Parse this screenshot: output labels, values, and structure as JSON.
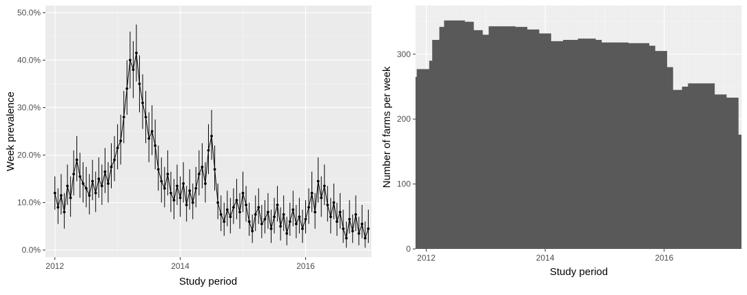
{
  "chart_data": [
    {
      "type": "scatter",
      "panel": "left",
      "title": "",
      "xlabel": "Study period",
      "ylabel": "Week prevalence",
      "x_ticks": [
        "2012",
        "2014",
        "2016"
      ],
      "y_ticks": [
        "0.0%",
        "10.0%",
        "20.0%",
        "30.0%",
        "40.0%",
        "50.0%"
      ],
      "xlim": [
        2011.85,
        2017.05
      ],
      "ylim": [
        -1.5,
        51.5
      ],
      "error_bars": true,
      "grid": true,
      "series": [
        {
          "points": [
            [
              2012.0,
              12.0,
              8.5,
              15.5
            ],
            [
              2012.05,
              9.0,
              5.5,
              13.0
            ],
            [
              2012.1,
              11.5,
              7.5,
              16.0
            ],
            [
              2012.15,
              8.0,
              4.5,
              12.0
            ],
            [
              2012.2,
              13.5,
              9.5,
              18.0
            ],
            [
              2012.25,
              11.0,
              7.0,
              15.5
            ],
            [
              2012.3,
              16.0,
              11.5,
              21.0
            ],
            [
              2012.35,
              19.0,
              14.5,
              24.0
            ],
            [
              2012.4,
              15.5,
              11.0,
              20.5
            ],
            [
              2012.45,
              14.0,
              10.0,
              18.5
            ],
            [
              2012.5,
              13.0,
              9.0,
              17.5
            ],
            [
              2012.55,
              11.5,
              7.5,
              16.0
            ],
            [
              2012.6,
              14.5,
              10.5,
              19.0
            ],
            [
              2012.65,
              12.0,
              8.0,
              16.5
            ],
            [
              2012.7,
              15.0,
              11.0,
              19.5
            ],
            [
              2012.75,
              13.5,
              9.5,
              18.0
            ],
            [
              2012.8,
              16.5,
              12.0,
              21.5
            ],
            [
              2012.85,
              14.0,
              10.0,
              18.5
            ],
            [
              2012.9,
              17.5,
              13.0,
              22.5
            ],
            [
              2012.95,
              19.0,
              14.5,
              24.0
            ],
            [
              2013.0,
              21.5,
              17.0,
              26.5
            ],
            [
              2013.05,
              23.0,
              18.0,
              28.5
            ],
            [
              2013.1,
              28.0,
              22.5,
              33.5
            ],
            [
              2013.15,
              34.0,
              28.5,
              40.0
            ],
            [
              2013.2,
              40.0,
              34.0,
              46.0
            ],
            [
              2013.25,
              38.0,
              32.0,
              44.0
            ],
            [
              2013.3,
              41.5,
              35.5,
              47.5
            ],
            [
              2013.35,
              35.0,
              29.0,
              41.0
            ],
            [
              2013.4,
              31.0,
              25.5,
              37.0
            ],
            [
              2013.45,
              28.0,
              22.5,
              33.5
            ],
            [
              2013.5,
              23.5,
              18.5,
              29.0
            ],
            [
              2013.55,
              25.0,
              20.0,
              30.5
            ],
            [
              2013.6,
              22.0,
              17.0,
              27.5
            ],
            [
              2013.65,
              17.0,
              12.5,
              22.0
            ],
            [
              2013.7,
              14.5,
              10.0,
              19.5
            ],
            [
              2013.75,
              13.0,
              9.0,
              17.5
            ],
            [
              2013.8,
              16.0,
              11.5,
              21.0
            ],
            [
              2013.85,
              12.0,
              8.0,
              16.5
            ],
            [
              2013.9,
              10.5,
              6.5,
              15.0
            ],
            [
              2013.95,
              13.5,
              9.5,
              18.0
            ],
            [
              2014.0,
              11.0,
              7.0,
              15.5
            ],
            [
              2014.05,
              14.0,
              10.0,
              18.5
            ],
            [
              2014.1,
              9.5,
              6.0,
              13.5
            ],
            [
              2014.15,
              12.5,
              8.5,
              17.0
            ],
            [
              2014.2,
              10.0,
              6.5,
              14.0
            ],
            [
              2014.25,
              13.0,
              9.0,
              17.5
            ],
            [
              2014.3,
              16.0,
              11.5,
              21.0
            ],
            [
              2014.35,
              17.5,
              13.0,
              22.5
            ],
            [
              2014.4,
              14.0,
              10.0,
              18.5
            ],
            [
              2014.45,
              21.0,
              16.0,
              26.5
            ],
            [
              2014.5,
              24.0,
              19.0,
              29.5
            ],
            [
              2014.55,
              17.0,
              12.5,
              22.0
            ],
            [
              2014.6,
              10.0,
              6.5,
              14.0
            ],
            [
              2014.65,
              7.5,
              4.0,
              11.5
            ],
            [
              2014.7,
              6.0,
              3.0,
              10.0
            ],
            [
              2014.75,
              8.5,
              5.0,
              12.5
            ],
            [
              2014.8,
              7.0,
              3.5,
              11.0
            ],
            [
              2014.85,
              9.0,
              5.5,
              13.0
            ],
            [
              2014.9,
              10.5,
              6.5,
              15.0
            ],
            [
              2014.95,
              8.0,
              4.5,
              12.0
            ],
            [
              2015.0,
              12.0,
              8.0,
              16.5
            ],
            [
              2015.05,
              9.5,
              6.0,
              13.5
            ],
            [
              2015.1,
              6.0,
              3.0,
              10.0
            ],
            [
              2015.15,
              4.0,
              1.5,
              7.5
            ],
            [
              2015.2,
              7.5,
              4.0,
              11.5
            ],
            [
              2015.25,
              9.0,
              5.5,
              13.0
            ],
            [
              2015.3,
              5.5,
              2.5,
              9.5
            ],
            [
              2015.35,
              6.5,
              3.5,
              10.5
            ],
            [
              2015.4,
              8.0,
              4.5,
              12.0
            ],
            [
              2015.45,
              4.5,
              1.5,
              8.5
            ],
            [
              2015.5,
              7.0,
              3.5,
              11.0
            ],
            [
              2015.55,
              9.5,
              6.0,
              13.5
            ],
            [
              2015.6,
              5.0,
              2.0,
              9.0
            ],
            [
              2015.65,
              7.5,
              4.0,
              11.5
            ],
            [
              2015.7,
              3.5,
              1.0,
              7.0
            ],
            [
              2015.75,
              6.0,
              3.0,
              10.0
            ],
            [
              2015.8,
              8.5,
              5.0,
              12.5
            ],
            [
              2015.85,
              5.5,
              2.5,
              9.5
            ],
            [
              2015.9,
              7.0,
              3.5,
              11.0
            ],
            [
              2015.95,
              4.5,
              1.5,
              8.5
            ],
            [
              2016.0,
              6.5,
              3.5,
              10.5
            ],
            [
              2016.05,
              9.0,
              5.5,
              13.0
            ],
            [
              2016.1,
              12.0,
              8.0,
              16.5
            ],
            [
              2016.15,
              8.0,
              4.5,
              12.0
            ],
            [
              2016.2,
              14.5,
              10.0,
              19.5
            ],
            [
              2016.25,
              11.0,
              7.0,
              15.5
            ],
            [
              2016.3,
              13.5,
              9.5,
              18.0
            ],
            [
              2016.35,
              9.5,
              6.0,
              13.5
            ],
            [
              2016.4,
              7.0,
              3.5,
              11.0
            ],
            [
              2016.45,
              10.0,
              6.5,
              14.0
            ],
            [
              2016.5,
              6.0,
              3.0,
              10.0
            ],
            [
              2016.55,
              8.0,
              4.5,
              12.0
            ],
            [
              2016.6,
              4.5,
              1.5,
              8.5
            ],
            [
              2016.65,
              2.5,
              0.5,
              6.0
            ],
            [
              2016.7,
              6.5,
              3.5,
              10.5
            ],
            [
              2016.75,
              4.0,
              1.5,
              7.5
            ],
            [
              2016.8,
              7.5,
              4.0,
              11.5
            ],
            [
              2016.85,
              3.5,
              1.0,
              7.0
            ],
            [
              2016.9,
              5.5,
              2.5,
              9.5
            ],
            [
              2016.95,
              2.5,
              0.5,
              6.0
            ],
            [
              2017.0,
              4.5,
              1.5,
              8.5
            ]
          ]
        }
      ]
    },
    {
      "type": "area",
      "panel": "right",
      "title": "",
      "xlabel": "Study period",
      "ylabel": "Number of farms per week",
      "x_ticks": [
        "2012",
        "2014",
        "2016"
      ],
      "y_ticks": [
        "0",
        "100",
        "200",
        "300"
      ],
      "xlim": [
        2011.82,
        2017.3
      ],
      "ylim": [
        0,
        375
      ],
      "grid": true,
      "steps": [
        [
          2011.82,
          265
        ],
        [
          2011.84,
          277
        ],
        [
          2012.05,
          290
        ],
        [
          2012.1,
          322
        ],
        [
          2012.22,
          342
        ],
        [
          2012.3,
          352
        ],
        [
          2012.65,
          350
        ],
        [
          2012.8,
          337
        ],
        [
          2012.95,
          330
        ],
        [
          2013.05,
          343
        ],
        [
          2013.5,
          342
        ],
        [
          2013.7,
          338
        ],
        [
          2013.9,
          332
        ],
        [
          2014.1,
          320
        ],
        [
          2014.3,
          322
        ],
        [
          2014.55,
          324
        ],
        [
          2014.85,
          322
        ],
        [
          2014.95,
          318
        ],
        [
          2015.4,
          317
        ],
        [
          2015.75,
          313
        ],
        [
          2015.85,
          305
        ],
        [
          2016.05,
          280
        ],
        [
          2016.15,
          245
        ],
        [
          2016.3,
          250
        ],
        [
          2016.4,
          255
        ],
        [
          2016.85,
          238
        ],
        [
          2017.05,
          233
        ],
        [
          2017.25,
          176
        ]
      ],
      "step_end": 2017.3
    }
  ]
}
